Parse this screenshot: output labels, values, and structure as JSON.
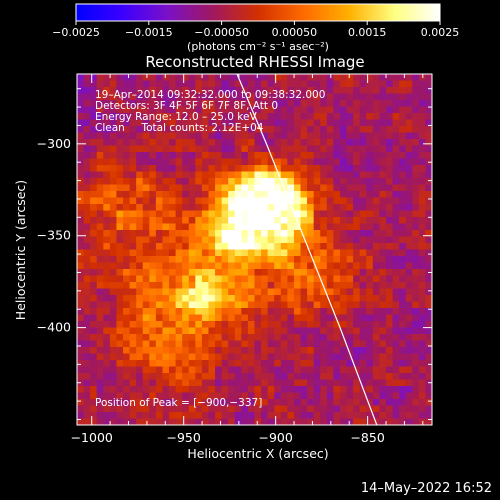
{
  "chart_data": {
    "type": "heatmap",
    "title": "Reconstructed RHESSI Image",
    "xlabel": "Heliocentric X (arcsec)",
    "ylabel": "Heliocentric Y (arcsec)",
    "xlim": [
      -1008,
      -815
    ],
    "ylim": [
      -453,
      -262
    ],
    "x_ticks": [
      -1000,
      -950,
      -900,
      -850
    ],
    "x_tick_labels": [
      "−1000",
      "−950",
      "−900",
      "−850"
    ],
    "y_ticks": [
      -300,
      -350,
      -400
    ],
    "y_tick_labels": [
      "−300",
      "−350",
      "−400"
    ],
    "colorbar": {
      "range": [
        -0.0025,
        0.0025
      ],
      "tick_values": [
        -0.0025,
        -0.0015,
        -0.0005,
        0.0005,
        0.0015,
        0.0025
      ],
      "tick_labels": [
        "−0.0025",
        "−0.0015",
        "−0.00050",
        "0.00050",
        "0.0015",
        "0.0025"
      ],
      "units_label": "(photons cm⁻² s⁻¹ asec⁻²)",
      "colormap": [
        "#0000ff",
        "#3a00ff",
        "#7a10c8",
        "#a01860",
        "#d23000",
        "#ff6a00",
        "#ffb000",
        "#ffff80",
        "#ffffff"
      ]
    },
    "annotations": [
      "19–Apr–2014 09:32:32.000 to 09:38:32.000",
      "Detectors: 3F 4F 5F 6F 7F 8F, Att 0",
      "Energy Range: 12.0 – 25.0 keV",
      "Clean     Total counts: 2.12E+04",
      "Position of Peak = [−900,−337]"
    ],
    "peak": {
      "x": -900,
      "y": -337
    },
    "limb": [
      {
        "x": -921,
        "y": -262
      },
      {
        "x": -905,
        "y": -300
      },
      {
        "x": -885,
        "y": -350
      },
      {
        "x": -865,
        "y": -400
      },
      {
        "x": -845,
        "y": -453
      }
    ],
    "sources": [
      {
        "x": -900,
        "y": -337,
        "sigma": 13,
        "amp": 1.0
      },
      {
        "x": -918,
        "y": -344,
        "sigma": 11,
        "amp": 0.85
      },
      {
        "x": -910,
        "y": -328,
        "sigma": 12,
        "amp": 0.55
      },
      {
        "x": -942,
        "y": -372,
        "sigma": 30,
        "amp": 0.45
      },
      {
        "x": -938,
        "y": -384,
        "sigma": 9,
        "amp": 0.35
      },
      {
        "x": -985,
        "y": -330,
        "sigma": 16,
        "amp": 0.3
      },
      {
        "x": -880,
        "y": -370,
        "sigma": 18,
        "amp": 0.28
      },
      {
        "x": -960,
        "y": -410,
        "sigma": 16,
        "amp": 0.22
      }
    ],
    "colors": {
      "limb": "#ffffff",
      "text": "#ffffff",
      "background": "#000000"
    }
  },
  "footer": {
    "timestamp": "14–May–2022 16:52"
  }
}
